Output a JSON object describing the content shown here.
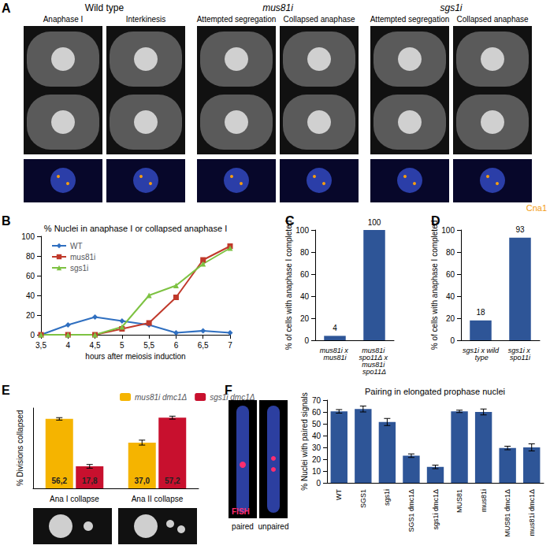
{
  "figure": {
    "panel_A": {
      "label": "A",
      "stain": "Cna1",
      "groups": [
        {
          "title": "Wild type",
          "images": [
            "Anaphase I",
            "Interkinesis"
          ]
        },
        {
          "title": "mus81i",
          "images": [
            "Attempted segregation",
            "Collapsed anaphase"
          ]
        },
        {
          "title": "sgs1i",
          "images": [
            "Attempted segregation",
            "Collapsed anaphase"
          ]
        }
      ]
    },
    "panel_F_image": {
      "channel": "FISH",
      "captions": [
        "paired",
        "unpaired"
      ]
    }
  },
  "chart_data": [
    {
      "panel": "B",
      "type": "line",
      "title": "% Nuclei in anaphase I or collapsed anaphase I",
      "x_label": "hours after meiosis induction",
      "x": [
        3.5,
        4,
        4.5,
        5,
        5.5,
        6,
        6.5,
        7
      ],
      "xlim": [
        3.5,
        7
      ],
      "xticks": [
        {
          "value": 3.5,
          "label": "3,5"
        },
        4,
        {
          "value": 4.5,
          "label": "4,5"
        },
        5,
        {
          "value": 5.5,
          "label": "5,5"
        },
        6,
        {
          "value": 6.5,
          "label": "6,5"
        },
        7
      ],
      "ylim": [
        0,
        100
      ],
      "yticks": [
        0,
        20,
        40,
        60,
        80,
        100
      ],
      "grid": false,
      "legend": "upper left",
      "series": [
        {
          "name": "WT",
          "color": "#2f6fc0",
          "marker": "diamond",
          "values": [
            0,
            10,
            18,
            14,
            10,
            2,
            4,
            2
          ]
        },
        {
          "name": "mus81i",
          "color": "#c0392b",
          "marker": "square",
          "values": [
            0,
            0,
            0,
            6,
            12,
            38,
            76,
            90
          ]
        },
        {
          "name": "sgs1i",
          "color": "#7dc242",
          "marker": "triangle",
          "values": [
            0,
            0,
            0,
            8,
            40,
            50,
            72,
            88
          ]
        }
      ]
    },
    {
      "panel": "C",
      "type": "bar",
      "y_label": "% of cells with anaphase I completed",
      "categories": [
        "mus81i x mus81i",
        "mus81i spo11Δ x mus81i spo11Δ"
      ],
      "values": [
        4,
        100
      ],
      "color": "#2e5597",
      "ylim": [
        0,
        100
      ],
      "yticks": [
        0,
        20,
        40,
        60,
        80,
        100
      ],
      "grid": false,
      "data_labels": true
    },
    {
      "panel": "D",
      "type": "bar",
      "y_label": "% of cells with anaphase I completed",
      "categories": [
        "sgs1i x wild type",
        "sgs1i x spo11i"
      ],
      "values": [
        18,
        93
      ],
      "color": "#2e5597",
      "ylim": [
        0,
        100
      ],
      "yticks": [
        0,
        20,
        40,
        60,
        80,
        100
      ],
      "grid": false,
      "data_labels": true
    },
    {
      "panel": "E",
      "type": "bar",
      "y_label": "% Divisions collapsed",
      "categories": [
        "Ana I collapse",
        "Ana II collapse"
      ],
      "ylim": [
        0,
        65
      ],
      "grid": false,
      "tick_labels": "x",
      "legend": "top",
      "data_labels": true,
      "series": [
        {
          "name": "mus81i dmc1Δ",
          "color": "#f5b400",
          "values": [
            56.2,
            37.0
          ],
          "value_labels": [
            "56,2",
            "37,0"
          ],
          "errors": [
            1,
            2
          ]
        },
        {
          "name": "sgs1i dmc1Δ",
          "color": "#c8102e",
          "values": [
            17.8,
            57.2
          ],
          "value_labels": [
            "17,8",
            "57,2"
          ],
          "errors": [
            1.5,
            1.2
          ]
        }
      ]
    },
    {
      "panel": "F",
      "type": "bar",
      "title": "Pairing in elongated prophase nuclei",
      "y_label": "% Nuclei with paired signals",
      "categories": [
        "WT",
        "SGS1",
        "sgs1i",
        "SGS1 dmc1Δ",
        "sgs1i dmc1Δ",
        "MUS81",
        "mus81i",
        "MUS81 dmc1Δ",
        "mus81i dmc1Δ"
      ],
      "values": [
        60.5,
        62.5,
        51.5,
        23,
        13.5,
        60.5,
        60,
        29.5,
        30
      ],
      "errors": [
        1.5,
        2.5,
        3,
        1.5,
        1.5,
        1,
        2.5,
        1.5,
        3
      ],
      "color": "#2e5597",
      "ylim": [
        0,
        70
      ],
      "yticks": [
        0,
        10,
        20,
        30,
        40,
        50,
        60,
        70
      ],
      "grid": false
    }
  ]
}
